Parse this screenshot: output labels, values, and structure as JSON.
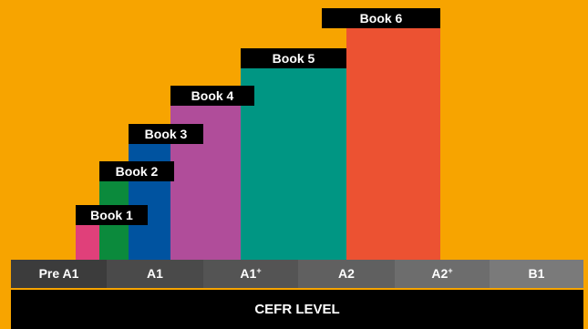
{
  "books": [
    {
      "label": "Book 1",
      "color": "#e0407a",
      "span_start": "Pre A1",
      "span_end": "A1"
    },
    {
      "label": "Book 2",
      "color": "#0b8a3c",
      "span_start": "Pre A1",
      "span_end": "A1"
    },
    {
      "label": "Book 3",
      "color": "#0053a0",
      "span_start": "Pre A1",
      "span_end": "A1⁺"
    },
    {
      "label": "Book 4",
      "color": "#b04d9a",
      "span_start": "A1",
      "span_end": "A1⁺"
    },
    {
      "label": "Book 5",
      "color": "#009683",
      "span_start": "A1⁺",
      "span_end": "A2"
    },
    {
      "label": "Book 6",
      "color": "#ec5232",
      "span_start": "A2",
      "span_end": "A2⁺"
    }
  ],
  "levels": [
    {
      "base": "Pre A1",
      "sup": "",
      "color": "#3c3c3c"
    },
    {
      "base": "A1",
      "sup": "",
      "color": "#4a4a4a"
    },
    {
      "base": "A1",
      "sup": "+",
      "color": "#545454"
    },
    {
      "base": "A2",
      "sup": "",
      "color": "#606060"
    },
    {
      "base": "A2",
      "sup": "+",
      "color": "#6d6d6d"
    },
    {
      "base": "B1",
      "sup": "",
      "color": "#7a7a7a"
    }
  ],
  "axis_title": "CEFR LEVEL",
  "background_color": "#f7a400"
}
